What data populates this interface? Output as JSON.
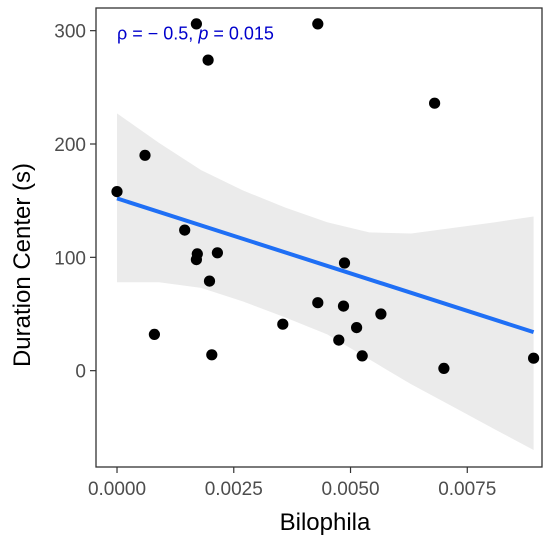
{
  "chart_data": {
    "type": "scatter",
    "xlabel": "Bilophila",
    "ylabel": "Duration Center (s)",
    "xlim": [
      -0.00045,
      0.0091
    ],
    "ylim": [
      -85,
      320
    ],
    "x_ticks": [
      {
        "value": 0.0,
        "label": "0.0000"
      },
      {
        "value": 0.0025,
        "label": "0.0025"
      },
      {
        "value": 0.005,
        "label": "0.0050"
      },
      {
        "value": 0.0075,
        "label": "0.0075"
      }
    ],
    "y_ticks": [
      {
        "value": 0,
        "label": "0"
      },
      {
        "value": 100,
        "label": "100"
      },
      {
        "value": 200,
        "label": "200"
      },
      {
        "value": 300,
        "label": "300"
      }
    ],
    "grid": false,
    "annotation": {
      "parts": [
        {
          "text": "ρ = − 0.5, ",
          "italic": false
        },
        {
          "text": "p",
          "italic": true
        },
        {
          "text": " = 0.015",
          "italic": false
        }
      ],
      "x": 0.0,
      "y": 292,
      "color": "#0000CC"
    },
    "points": [
      {
        "x": 0.0,
        "y": 158
      },
      {
        "x": 0.0006,
        "y": 190
      },
      {
        "x": 0.0008,
        "y": 32
      },
      {
        "x": 0.00145,
        "y": 124
      },
      {
        "x": 0.0017,
        "y": 306
      },
      {
        "x": 0.0017,
        "y": 98
      },
      {
        "x": 0.00172,
        "y": 103
      },
      {
        "x": 0.00195,
        "y": 274
      },
      {
        "x": 0.00198,
        "y": 79
      },
      {
        "x": 0.00203,
        "y": 14
      },
      {
        "x": 0.00215,
        "y": 104
      },
      {
        "x": 0.00355,
        "y": 41
      },
      {
        "x": 0.0043,
        "y": 306
      },
      {
        "x": 0.0043,
        "y": 60
      },
      {
        "x": 0.00475,
        "y": 27
      },
      {
        "x": 0.00485,
        "y": 57
      },
      {
        "x": 0.00487,
        "y": 95
      },
      {
        "x": 0.00513,
        "y": 38
      },
      {
        "x": 0.00525,
        "y": 13
      },
      {
        "x": 0.00565,
        "y": 50
      },
      {
        "x": 0.0068,
        "y": 236
      },
      {
        "x": 0.007,
        "y": 2
      },
      {
        "x": 0.00892,
        "y": 11
      }
    ],
    "trend_line": {
      "x": [
        0.0,
        0.00892
      ],
      "y": [
        152,
        34
      ],
      "color": "#1F6FF5"
    },
    "confidence_band": {
      "x": [
        0.0,
        0.0009,
        0.0018,
        0.0027,
        0.0036,
        0.0045,
        0.0054,
        0.0063,
        0.0072,
        0.0081,
        0.00892
      ],
      "upper": [
        227,
        201,
        177,
        159,
        144,
        131,
        122,
        121,
        126,
        131,
        136
      ],
      "lower": [
        78,
        78,
        73,
        61,
        47,
        32,
        10,
        -12,
        -32,
        -52,
        -70
      ],
      "color": "#EBEBEB"
    },
    "colors": {
      "points": "#000000",
      "axis": "#333333",
      "tick_label": "#4D4D4D"
    }
  }
}
